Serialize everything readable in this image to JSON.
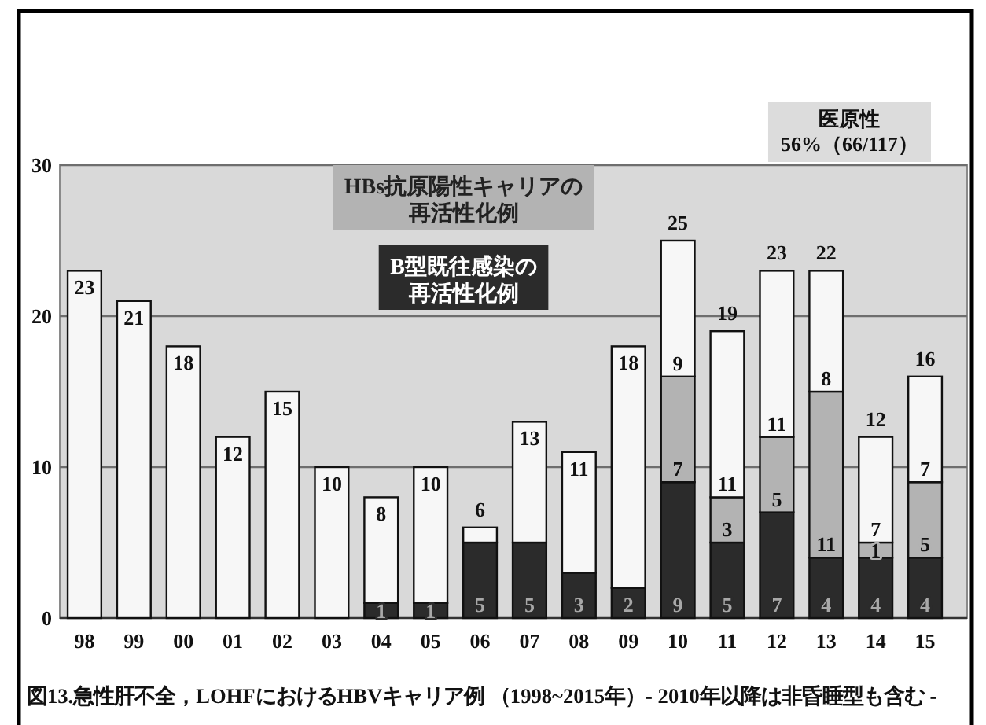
{
  "chart_data": {
    "type": "bar",
    "stacked": true,
    "title": "図13.急性肝不全，LOHFにおけるHBVキャリア例 （1998~2015年）- 2010年以降は非昏睡型も含む -",
    "annotations": [
      "医原性\n56%（66/117）"
    ],
    "categories": [
      "98",
      "99",
      "00",
      "01",
      "02",
      "03",
      "04",
      "05",
      "06",
      "07",
      "08",
      "09",
      "10",
      "11",
      "12",
      "13",
      "14",
      "15"
    ],
    "series": [
      {
        "name": "B型既往感染の再活性化例",
        "color": "#2b2b2b",
        "values": [
          0,
          0,
          0,
          0,
          0,
          0,
          1,
          1,
          5,
          5,
          3,
          2,
          9,
          5,
          7,
          4,
          4,
          4
        ],
        "value_labels": [
          null,
          null,
          null,
          null,
          null,
          null,
          "1",
          "1",
          "5",
          "5",
          "3",
          "2",
          "9",
          "5",
          "7",
          "4",
          "4",
          "4"
        ]
      },
      {
        "name": "HBs抗原陽性キャリアの再活性化例",
        "color": "#b3b3b3",
        "values": [
          0,
          0,
          0,
          0,
          0,
          0,
          0,
          0,
          0,
          0,
          0,
          0,
          7,
          3,
          5,
          11,
          1,
          5
        ],
        "value_labels": [
          null,
          null,
          null,
          null,
          null,
          null,
          null,
          null,
          null,
          null,
          null,
          null,
          "7",
          "3",
          "5",
          "11",
          "1",
          "5"
        ]
      },
      {
        "color": "#f7f7f7",
        "values": [
          23,
          21,
          18,
          12,
          15,
          10,
          7,
          9,
          1,
          8,
          8,
          16,
          9,
          11,
          11,
          8,
          7,
          7
        ],
        "value_labels": [
          null,
          null,
          null,
          null,
          null,
          null,
          null,
          null,
          null,
          null,
          null,
          null,
          "9",
          "11",
          "11",
          "8",
          "7",
          "7"
        ]
      }
    ],
    "totals": [
      "23",
      "21",
      "18",
      "12",
      "15",
      "10",
      "8",
      "10",
      "6",
      "13",
      "11",
      "18",
      "25",
      "19",
      "23",
      "22",
      "12",
      "16"
    ],
    "ylim": [
      0,
      30
    ],
    "yticks": [
      0,
      10,
      20,
      30
    ],
    "grid": "y",
    "legend": "top"
  }
}
